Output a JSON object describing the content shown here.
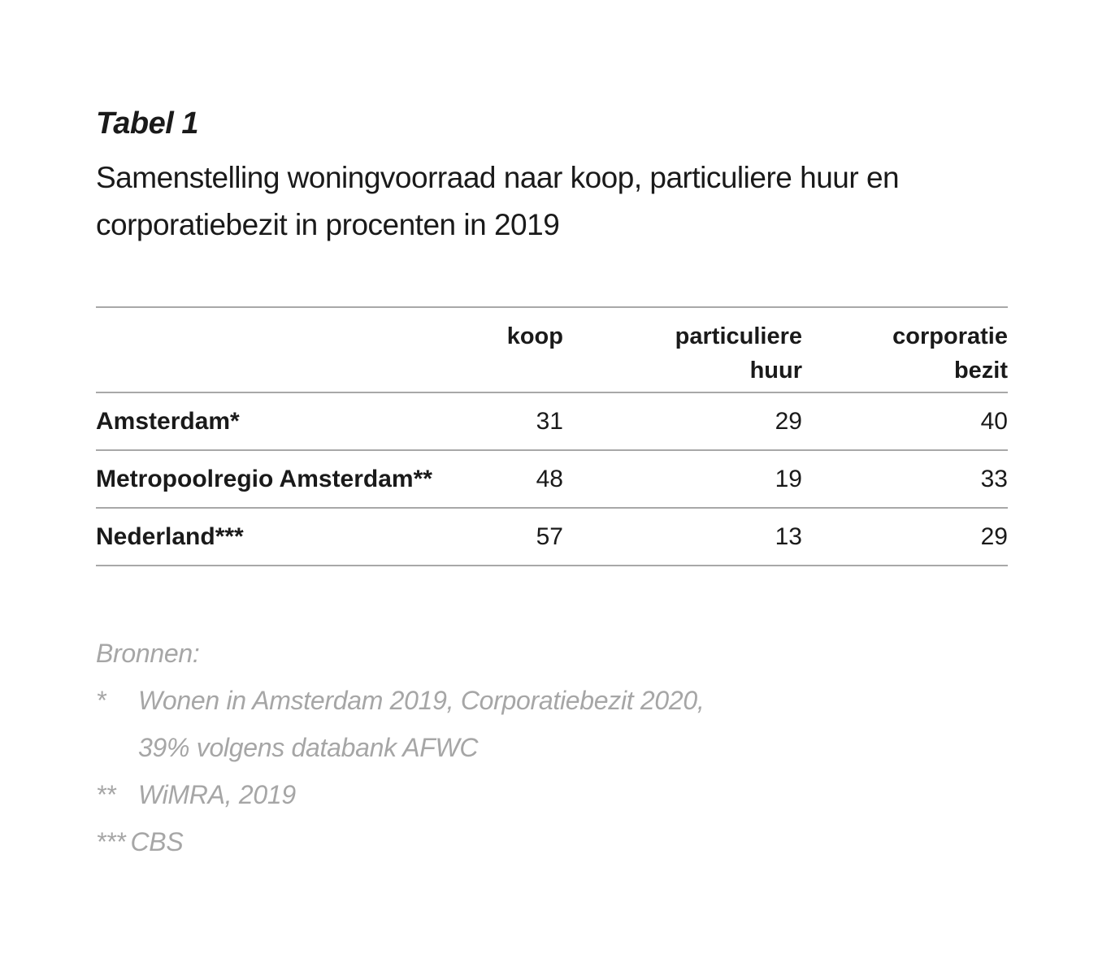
{
  "document": {
    "table_label": "Tabel 1",
    "caption": "Samenstelling woningvoorraad naar koop, particuliere huur en corporatiebezit in procenten in 2019"
  },
  "table": {
    "headers": {
      "koop": "koop",
      "particuliere_line1": "particuliere",
      "particuliere_line2": "huur",
      "corporatie_line1": "corporatie",
      "corporatie_line2": "bezit"
    },
    "rows": [
      {
        "region": "Amsterdam*",
        "koop": "31",
        "particuliere_huur": "29",
        "corporatie_bezit": "40"
      },
      {
        "region": "Metropoolregio Amsterdam**",
        "koop": "48",
        "particuliere_huur": "19",
        "corporatie_bezit": "33"
      },
      {
        "region": "Nederland***",
        "koop": "57",
        "particuliere_huur": "13",
        "corporatie_bezit": "29"
      }
    ]
  },
  "sources": {
    "heading": "Bronnen:",
    "items": [
      {
        "mark": "*",
        "lines": [
          "Wonen in Amsterdam 2019, Corporatiebezit 2020,",
          "39% volgens databank AFWC"
        ]
      },
      {
        "mark": "**",
        "lines": [
          "WiMRA, 2019"
        ]
      },
      {
        "mark": "***",
        "lines": [
          "CBS"
        ]
      }
    ]
  }
}
